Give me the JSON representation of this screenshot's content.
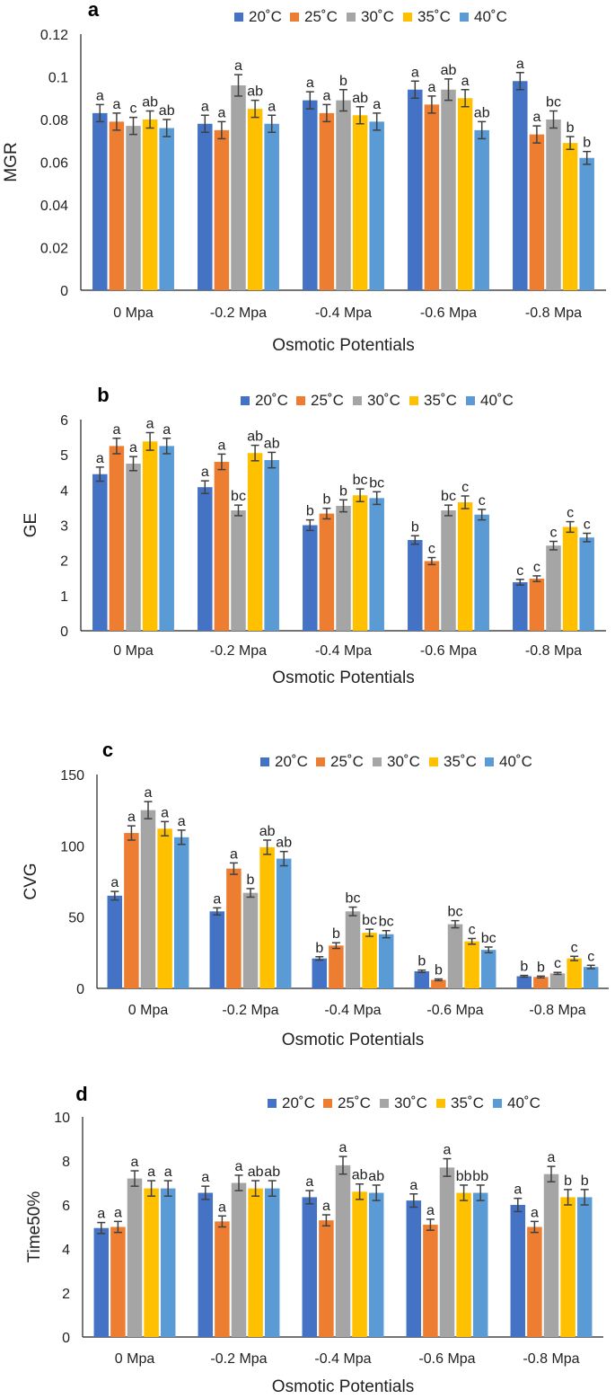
{
  "colors": {
    "20C": "#4472C4",
    "25C": "#ED7D31",
    "30C": "#A5A5A5",
    "35C": "#FFC000",
    "40C": "#5B9BD5",
    "error_bar": "#404040",
    "axis": "#222222"
  },
  "chart_data": [
    {
      "panel": "a",
      "type": "bar",
      "title": "",
      "xlabel": "Osmotic Potentials",
      "ylabel": "MGR",
      "ylim": [
        0,
        0.12
      ],
      "yticks": [
        0,
        0.02,
        0.04,
        0.06,
        0.08,
        0.1,
        0.12
      ],
      "ytick_labels": [
        "0",
        "0.02",
        "0.04",
        "0.06",
        "0.08",
        "0.1",
        "0.12"
      ],
      "categories": [
        "0 Mpa",
        "-0.2 Mpa",
        "-0.4 Mpa",
        "-0.6 Mpa",
        "-0.8 Mpa"
      ],
      "series": [
        {
          "name": "20˚C",
          "color": "#4472C4",
          "values": [
            0.083,
            0.078,
            0.089,
            0.094,
            0.098
          ],
          "errors": [
            0.004,
            0.004,
            0.004,
            0.004,
            0.004
          ],
          "labels": [
            "a",
            "a",
            "a",
            "a",
            "a"
          ]
        },
        {
          "name": "25˚C",
          "color": "#ED7D31",
          "values": [
            0.079,
            0.075,
            0.083,
            0.087,
            0.073
          ],
          "errors": [
            0.004,
            0.004,
            0.004,
            0.004,
            0.004
          ],
          "labels": [
            "a",
            "a",
            "a",
            "a",
            "a"
          ]
        },
        {
          "name": "30˚C",
          "color": "#A5A5A5",
          "values": [
            0.077,
            0.096,
            0.089,
            0.094,
            0.08
          ],
          "errors": [
            0.004,
            0.005,
            0.005,
            0.005,
            0.004
          ],
          "labels": [
            "c",
            "a",
            "b",
            "ab",
            "bc"
          ]
        },
        {
          "name": "35˚C",
          "color": "#FFC000",
          "values": [
            0.08,
            0.085,
            0.082,
            0.09,
            0.069
          ],
          "errors": [
            0.004,
            0.004,
            0.004,
            0.004,
            0.003
          ],
          "labels": [
            "ab",
            "ab",
            "ab",
            "a",
            "b"
          ]
        },
        {
          "name": "40˚C",
          "color": "#5B9BD5",
          "values": [
            0.076,
            0.078,
            0.079,
            0.075,
            0.062
          ],
          "errors": [
            0.004,
            0.004,
            0.004,
            0.004,
            0.003
          ],
          "labels": [
            "ab",
            "a",
            "a",
            "ab",
            "b"
          ]
        }
      ]
    },
    {
      "panel": "b",
      "type": "bar",
      "title": "",
      "xlabel": "Osmotic Potentials",
      "ylabel": "GE",
      "ylim": [
        0,
        6
      ],
      "yticks": [
        0,
        1,
        2,
        3,
        4,
        5,
        6
      ],
      "ytick_labels": [
        "0",
        "1",
        "2",
        "3",
        "4",
        "5",
        "6"
      ],
      "categories": [
        "0 Mpa",
        "-0.2 Mpa",
        "-0.4 Mpa",
        "-0.6 Mpa",
        "-0.8 Mpa"
      ],
      "series": [
        {
          "name": "20˚C",
          "color": "#4472C4",
          "values": [
            4.45,
            4.08,
            3.0,
            2.58,
            1.38
          ],
          "errors": [
            0.2,
            0.18,
            0.15,
            0.12,
            0.08
          ],
          "labels": [
            "a",
            "a",
            "b",
            "b",
            "c"
          ]
        },
        {
          "name": "25˚C",
          "color": "#ED7D31",
          "values": [
            5.25,
            4.8,
            3.33,
            1.98,
            1.48
          ],
          "errors": [
            0.22,
            0.22,
            0.15,
            0.1,
            0.08
          ],
          "labels": [
            "a",
            "a",
            "b",
            "c",
            "c"
          ]
        },
        {
          "name": "30˚C",
          "color": "#A5A5A5",
          "values": [
            4.75,
            3.42,
            3.55,
            3.42,
            2.42
          ],
          "errors": [
            0.2,
            0.15,
            0.17,
            0.15,
            0.12
          ],
          "labels": [
            "a",
            "bc",
            "b",
            "bc",
            "c"
          ]
        },
        {
          "name": "35˚C",
          "color": "#FFC000",
          "values": [
            5.38,
            5.05,
            3.85,
            3.65,
            2.95
          ],
          "errors": [
            0.25,
            0.22,
            0.18,
            0.18,
            0.15
          ],
          "labels": [
            "a",
            "ab",
            "bc",
            "c",
            "c"
          ]
        },
        {
          "name": "40˚C",
          "color": "#5B9BD5",
          "values": [
            5.25,
            4.85,
            3.77,
            3.3,
            2.65
          ],
          "errors": [
            0.22,
            0.22,
            0.18,
            0.15,
            0.12
          ],
          "labels": [
            "a",
            "ab",
            "bc",
            "c",
            "c"
          ]
        }
      ]
    },
    {
      "panel": "c",
      "type": "bar",
      "title": "",
      "xlabel": "Osmotic Potentials",
      "ylabel": "CVG",
      "ylim": [
        0,
        150
      ],
      "yticks": [
        0,
        50,
        100,
        150
      ],
      "ytick_labels": [
        "0",
        "50",
        "100",
        "150"
      ],
      "categories": [
        "0 Mpa",
        "-0.2 Mpa",
        "-0.4 Mpa",
        "-0.6 Mpa",
        "-0.8 Mpa"
      ],
      "series": [
        {
          "name": "20˚C",
          "color": "#4472C4",
          "values": [
            65,
            54,
            21,
            12,
            8.5
          ],
          "errors": [
            3,
            2.5,
            1.2,
            0.8,
            0.6
          ],
          "labels": [
            "a",
            "a",
            "b",
            "b",
            "b"
          ]
        },
        {
          "name": "25˚C",
          "color": "#ED7D31",
          "values": [
            109,
            84,
            30,
            6,
            8
          ],
          "errors": [
            5,
            4,
            2,
            0.6,
            0.6
          ],
          "labels": [
            "a",
            "a",
            "b",
            "b",
            "b"
          ]
        },
        {
          "name": "30˚C",
          "color": "#A5A5A5",
          "values": [
            125,
            67,
            54,
            45,
            10.5
          ],
          "errors": [
            6,
            3,
            3,
            2.5,
            0.7
          ],
          "labels": [
            "a",
            "b",
            "bc",
            "bc",
            "c"
          ]
        },
        {
          "name": "35˚C",
          "color": "#FFC000",
          "values": [
            112,
            99,
            39,
            33,
            21
          ],
          "errors": [
            5,
            5,
            2.5,
            2,
            1.5
          ],
          "labels": [
            "a",
            "ab",
            "bc",
            "c",
            "c"
          ]
        },
        {
          "name": "40˚C",
          "color": "#5B9BD5",
          "values": [
            106,
            91,
            38,
            27,
            15
          ],
          "errors": [
            5,
            5,
            2.5,
            2,
            1.2
          ],
          "labels": [
            "a",
            "ab",
            "bc",
            "bc",
            "c"
          ]
        }
      ]
    },
    {
      "panel": "d",
      "type": "bar",
      "title": "",
      "xlabel": "Osmotic Potentials",
      "ylabel": "Time50%",
      "ylim": [
        0,
        10
      ],
      "yticks": [
        0,
        2,
        4,
        6,
        8,
        10
      ],
      "ytick_labels": [
        "0",
        "2",
        "4",
        "6",
        "8",
        "10"
      ],
      "categories": [
        "0 Mpa",
        "-0.2 Mpa",
        "-0.4 Mpa",
        "-0.6 Mpa",
        "-0.8 Mpa"
      ],
      "series": [
        {
          "name": "20˚C",
          "color": "#4472C4",
          "values": [
            4.95,
            6.55,
            6.35,
            6.2,
            6.0
          ],
          "errors": [
            0.25,
            0.3,
            0.3,
            0.3,
            0.3
          ],
          "labels": [
            "a",
            "a",
            "a",
            "a",
            "a"
          ]
        },
        {
          "name": "25˚C",
          "color": "#ED7D31",
          "values": [
            5.0,
            5.25,
            5.3,
            5.1,
            5.0
          ],
          "errors": [
            0.25,
            0.25,
            0.25,
            0.25,
            0.25
          ],
          "labels": [
            "a",
            "a",
            "a",
            "a",
            "a"
          ]
        },
        {
          "name": "30˚C",
          "color": "#A5A5A5",
          "values": [
            7.2,
            7.0,
            7.8,
            7.7,
            7.4
          ],
          "errors": [
            0.35,
            0.35,
            0.4,
            0.4,
            0.35
          ],
          "labels": [
            "a",
            "a",
            "a",
            "a",
            "a"
          ]
        },
        {
          "name": "35˚C",
          "color": "#FFC000",
          "values": [
            6.75,
            6.75,
            6.6,
            6.55,
            6.35
          ],
          "errors": [
            0.35,
            0.35,
            0.35,
            0.35,
            0.35
          ],
          "labels": [
            "a",
            "ab",
            "ab",
            "bb",
            "b"
          ]
        },
        {
          "name": "40˚C",
          "color": "#5B9BD5",
          "values": [
            6.75,
            6.75,
            6.55,
            6.55,
            6.35
          ],
          "errors": [
            0.35,
            0.35,
            0.35,
            0.35,
            0.35
          ],
          "labels": [
            "a",
            "ab",
            "ab",
            "bb",
            "b"
          ]
        }
      ]
    }
  ]
}
